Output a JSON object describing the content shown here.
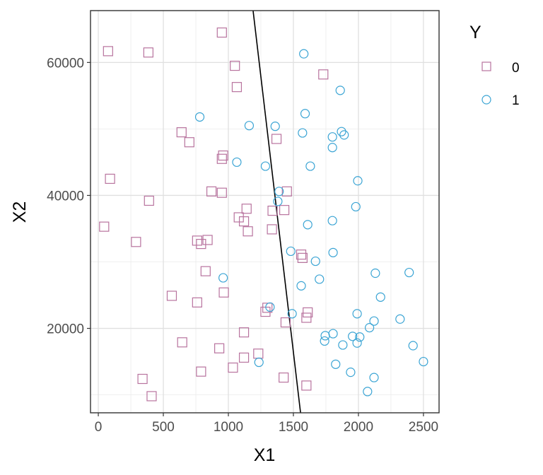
{
  "chart_data": {
    "type": "scatter",
    "xlabel": "X1",
    "ylabel": "X2",
    "xlim": [
      -60,
      2620
    ],
    "ylim": [
      7300,
      67800
    ],
    "x_ticks": [
      0,
      500,
      1000,
      1500,
      2000,
      2500
    ],
    "x_tick_labels": [
      "0",
      "500",
      "1000",
      "1500",
      "2000",
      "2500"
    ],
    "y_ticks": [
      20000,
      40000,
      60000
    ],
    "y_tick_labels": [
      "20000",
      "40000",
      "60000"
    ],
    "grid": true,
    "legend": {
      "title": "Y",
      "position": "right",
      "entries": [
        {
          "label": "0",
          "shape": "square",
          "color": "#b8739e"
        },
        {
          "label": "1",
          "shape": "circle",
          "color": "#3aa4d4"
        }
      ]
    },
    "boundary_line": {
      "x": [
        1190,
        1555
      ],
      "y": [
        67800,
        7300
      ],
      "color": "#000000"
    },
    "series": [
      {
        "name": "0",
        "shape": "square",
        "color": "#b8739e",
        "points": [
          [
            75,
            61700
          ],
          [
            385,
            61500
          ],
          [
            950,
            64500
          ],
          [
            1050,
            59500
          ],
          [
            1730,
            58200
          ],
          [
            1065,
            56300
          ],
          [
            640,
            49500
          ],
          [
            700,
            48000
          ],
          [
            1370,
            48500
          ],
          [
            960,
            46000
          ],
          [
            950,
            45500
          ],
          [
            90,
            42500
          ],
          [
            870,
            40600
          ],
          [
            950,
            40400
          ],
          [
            1450,
            40600
          ],
          [
            390,
            39200
          ],
          [
            1140,
            38000
          ],
          [
            1340,
            37700
          ],
          [
            1430,
            37800
          ],
          [
            1080,
            36700
          ],
          [
            1120,
            36100
          ],
          [
            45,
            35300
          ],
          [
            1150,
            34600
          ],
          [
            1335,
            34900
          ],
          [
            290,
            33000
          ],
          [
            760,
            33200
          ],
          [
            840,
            33300
          ],
          [
            790,
            32700
          ],
          [
            1560,
            31100
          ],
          [
            1570,
            30600
          ],
          [
            825,
            28600
          ],
          [
            965,
            25400
          ],
          [
            565,
            24900
          ],
          [
            760,
            23900
          ],
          [
            1300,
            23100
          ],
          [
            1285,
            22500
          ],
          [
            1610,
            22400
          ],
          [
            1600,
            21600
          ],
          [
            1440,
            20900
          ],
          [
            1120,
            19400
          ],
          [
            645,
            17900
          ],
          [
            930,
            17000
          ],
          [
            1230,
            16200
          ],
          [
            1120,
            15600
          ],
          [
            790,
            13500
          ],
          [
            1035,
            14100
          ],
          [
            340,
            12400
          ],
          [
            1425,
            12600
          ],
          [
            410,
            9800
          ],
          [
            1600,
            11400
          ]
        ]
      },
      {
        "name": "1",
        "shape": "circle",
        "color": "#3aa4d4",
        "points": [
          [
            1580,
            61300
          ],
          [
            1860,
            55800
          ],
          [
            780,
            51800
          ],
          [
            1590,
            52300
          ],
          [
            1160,
            50500
          ],
          [
            1360,
            50400
          ],
          [
            1570,
            49400
          ],
          [
            1870,
            49600
          ],
          [
            1890,
            49100
          ],
          [
            1800,
            48800
          ],
          [
            1800,
            47200
          ],
          [
            1065,
            45000
          ],
          [
            1285,
            44400
          ],
          [
            1630,
            44400
          ],
          [
            1995,
            42200
          ],
          [
            1390,
            40600
          ],
          [
            1380,
            39100
          ],
          [
            1980,
            38300
          ],
          [
            1800,
            36200
          ],
          [
            1610,
            35600
          ],
          [
            1480,
            31600
          ],
          [
            1805,
            31400
          ],
          [
            1670,
            30100
          ],
          [
            960,
            27600
          ],
          [
            1700,
            27400
          ],
          [
            2130,
            28300
          ],
          [
            2390,
            28400
          ],
          [
            1560,
            26400
          ],
          [
            2170,
            24700
          ],
          [
            1320,
            23200
          ],
          [
            1490,
            22200
          ],
          [
            1990,
            22200
          ],
          [
            2320,
            21400
          ],
          [
            2120,
            21100
          ],
          [
            2085,
            20100
          ],
          [
            1745,
            18900
          ],
          [
            1805,
            19200
          ],
          [
            1955,
            18800
          ],
          [
            2010,
            18700
          ],
          [
            1740,
            18100
          ],
          [
            1990,
            17800
          ],
          [
            1880,
            17500
          ],
          [
            2420,
            17400
          ],
          [
            1825,
            14600
          ],
          [
            1235,
            14900
          ],
          [
            2500,
            15000
          ],
          [
            1940,
            13400
          ],
          [
            2120,
            12600
          ],
          [
            2070,
            10500
          ]
        ]
      }
    ]
  }
}
